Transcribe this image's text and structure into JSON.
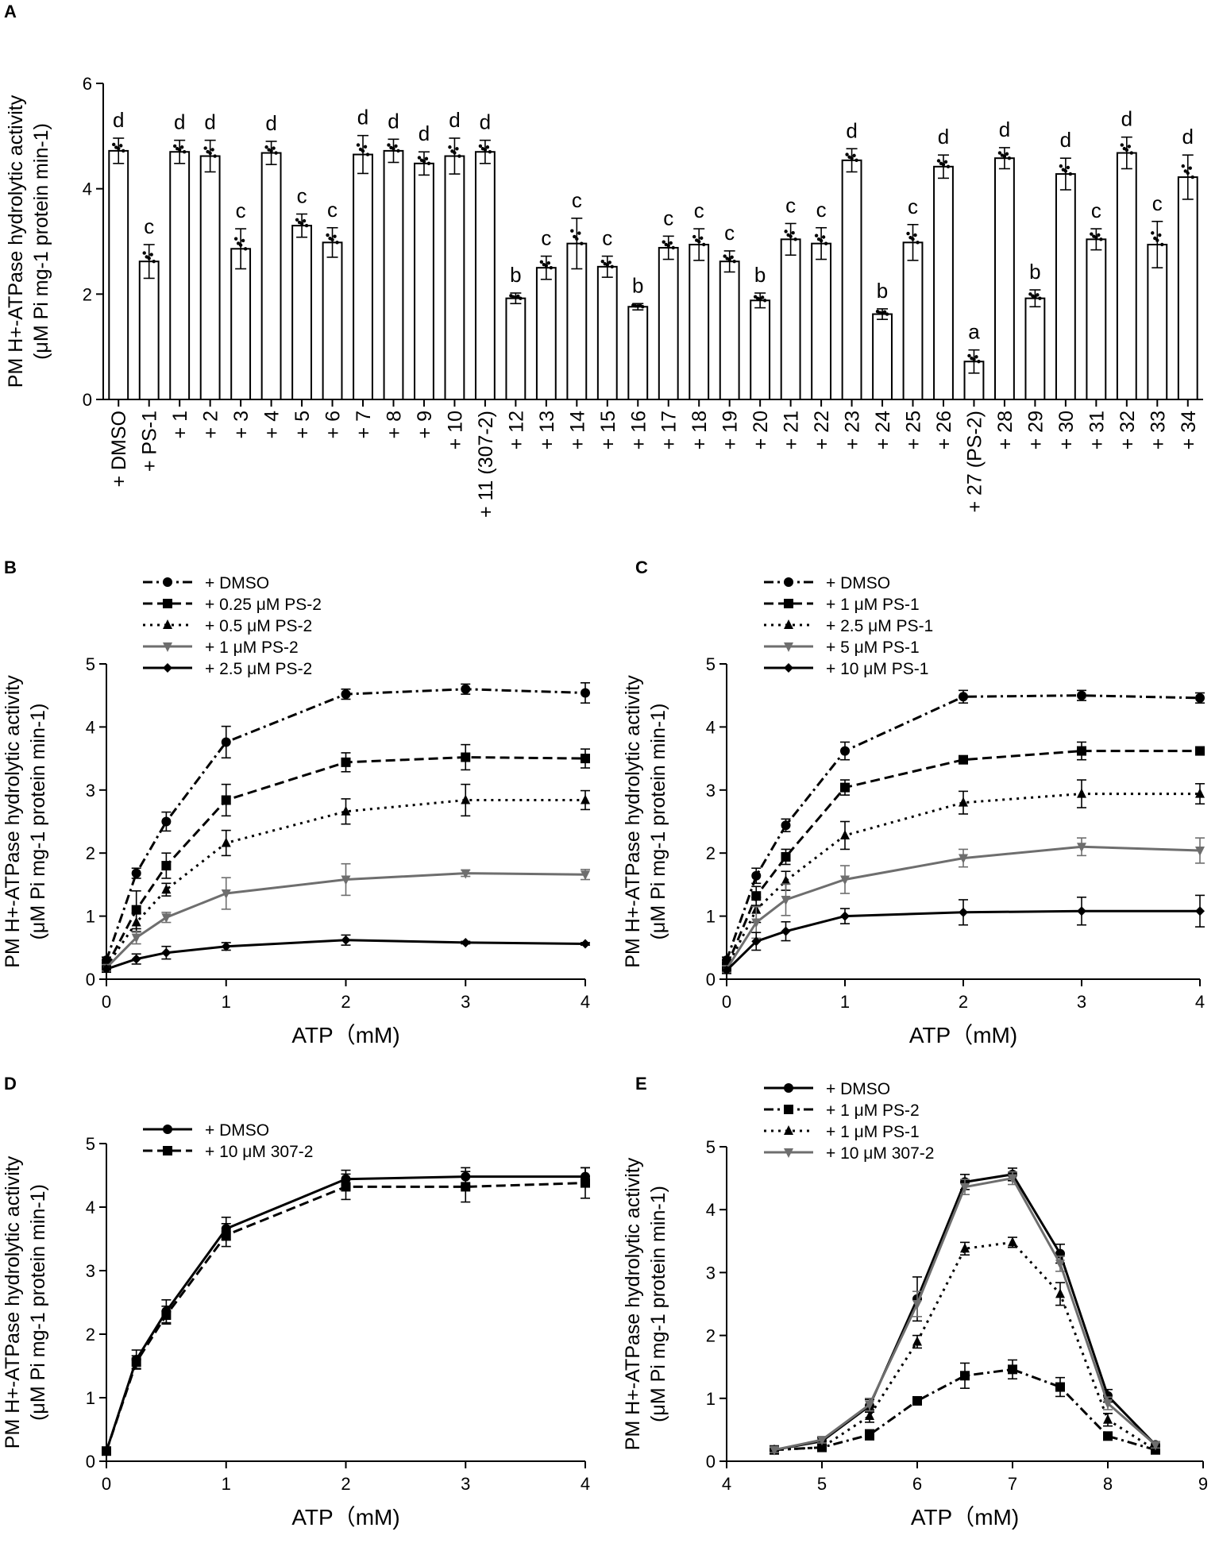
{
  "chart_data": [
    {
      "panel": "A",
      "type": "bar",
      "xlabel": "",
      "ylabel_line1": "PM H+-ATPase hydrolytic activity",
      "ylabel_line2": "(μM Pi mg-1 protein min-1)",
      "ylim": [
        0,
        6
      ],
      "yticks": [
        0,
        2,
        4,
        6
      ],
      "categories": [
        "+ DMSO",
        "+ PS-1",
        "+ 1",
        "+ 2",
        "+ 3",
        "+ 4",
        "+ 5",
        "+ 6",
        "+ 7",
        "+ 8",
        "+ 9",
        "+ 10",
        "+ 11 (307-2)",
        "+ 12",
        "+ 13",
        "+ 14",
        "+ 15",
        "+ 16",
        "+ 17",
        "+ 18",
        "+ 19",
        "+ 20",
        "+ 21",
        "+ 22",
        "+ 23",
        "+ 24",
        "+ 25",
        "+ 26",
        "+ 27 (PS-2)",
        "+ 28",
        "+ 29",
        "+ 30",
        "+ 31",
        "+ 32",
        "+ 33",
        "+ 34"
      ],
      "values": [
        4.72,
        2.62,
        4.7,
        4.62,
        2.86,
        4.68,
        3.3,
        2.98,
        4.65,
        4.72,
        4.48,
        4.62,
        4.7,
        1.92,
        2.5,
        2.96,
        2.52,
        1.76,
        2.88,
        2.94,
        2.62,
        1.88,
        3.04,
        2.96,
        4.54,
        1.62,
        2.98,
        4.42,
        0.72,
        4.58,
        1.92,
        4.28,
        3.04,
        4.68,
        2.94,
        4.22
      ],
      "errors": [
        0.24,
        0.32,
        0.22,
        0.3,
        0.38,
        0.22,
        0.22,
        0.28,
        0.36,
        0.22,
        0.22,
        0.34,
        0.22,
        0.1,
        0.22,
        0.48,
        0.2,
        0.06,
        0.22,
        0.3,
        0.2,
        0.14,
        0.3,
        0.3,
        0.22,
        0.1,
        0.34,
        0.22,
        0.22,
        0.2,
        0.16,
        0.3,
        0.2,
        0.3,
        0.44,
        0.42
      ],
      "significance": [
        "d",
        "c",
        "d",
        "d",
        "c",
        "d",
        "c",
        "c",
        "d",
        "d",
        "d",
        "d",
        "d",
        "b",
        "c",
        "c",
        "c",
        "b",
        "c",
        "c",
        "c",
        "b",
        "c",
        "c",
        "d",
        "b",
        "c",
        "d",
        "a",
        "d",
        "b",
        "d",
        "c",
        "d",
        "c",
        "d"
      ]
    },
    {
      "panel": "B",
      "type": "line",
      "xlabel": "ATP（mM)",
      "ylabel_line1": "PM H+-ATPase hydrolytic activity",
      "ylabel_line2": "(μM Pi mg-1 protein min-1)",
      "xlim": [
        0,
        4
      ],
      "ylim": [
        0,
        5
      ],
      "xticks": [
        0,
        1,
        2,
        3,
        4
      ],
      "yticks": [
        0,
        1,
        2,
        3,
        4,
        5
      ],
      "x": [
        0,
        0.25,
        0.5,
        1,
        2,
        3,
        4
      ],
      "series": [
        {
          "name": "+ DMSO",
          "values": [
            0.3,
            1.68,
            2.5,
            3.76,
            4.52,
            4.6,
            4.54
          ],
          "errors": [
            0.05,
            0.08,
            0.15,
            0.25,
            0.08,
            0.08,
            0.16
          ],
          "marker": "circle",
          "dash": "dashdot",
          "color": "#000000"
        },
        {
          "name": "+ 0.25 μM PS-2",
          "values": [
            0.2,
            1.1,
            1.8,
            2.84,
            3.44,
            3.52,
            3.5
          ],
          "errors": [
            0.05,
            0.3,
            0.2,
            0.25,
            0.15,
            0.2,
            0.15
          ],
          "marker": "square",
          "dash": "dash",
          "color": "#000000"
        },
        {
          "name": "+ 0.5 μM PS-2",
          "values": [
            0.2,
            0.9,
            1.42,
            2.16,
            2.66,
            2.84,
            2.84
          ],
          "errors": [
            0.05,
            0.15,
            0.1,
            0.2,
            0.2,
            0.25,
            0.15
          ],
          "marker": "triangle-up",
          "dash": "dot",
          "color": "#000000"
        },
        {
          "name": "+ 1 μM PS-2",
          "values": [
            0.18,
            0.66,
            0.98,
            1.36,
            1.58,
            1.68,
            1.66
          ],
          "errors": [
            0.05,
            0.1,
            0.08,
            0.25,
            0.25,
            0.05,
            0.08
          ],
          "marker": "triangle-down",
          "dash": "solid",
          "color": "#6e6e6e"
        },
        {
          "name": "+ 2.5 μM PS-2",
          "values": [
            0.16,
            0.32,
            0.42,
            0.52,
            0.62,
            0.58,
            0.56
          ],
          "errors": [
            0.05,
            0.08,
            0.1,
            0.06,
            0.08,
            0.02,
            0.02
          ],
          "marker": "diamond",
          "dash": "solid",
          "color": "#000000"
        }
      ]
    },
    {
      "panel": "C",
      "type": "line",
      "xlabel": "ATP（mM)",
      "ylabel_line1": "PM H+-ATPase hydrolytic activity",
      "ylabel_line2": "(μM Pi mg-1 protein min-1)",
      "xlim": [
        0,
        4
      ],
      "ylim": [
        0,
        5
      ],
      "xticks": [
        0,
        1,
        2,
        3,
        4
      ],
      "yticks": [
        0,
        1,
        2,
        3,
        4,
        5
      ],
      "x": [
        0,
        0.25,
        0.5,
        1,
        2,
        3,
        4
      ],
      "series": [
        {
          "name": "+ DMSO",
          "values": [
            0.3,
            1.64,
            2.44,
            3.62,
            4.48,
            4.5,
            4.46
          ],
          "errors": [
            0.05,
            0.12,
            0.1,
            0.14,
            0.1,
            0.08,
            0.08
          ],
          "marker": "circle",
          "dash": "dashdot",
          "color": "#000000"
        },
        {
          "name": "+ 1 μM PS-1",
          "values": [
            0.2,
            1.32,
            1.94,
            3.04,
            3.48,
            3.62,
            3.62
          ],
          "errors": [
            0.05,
            0.15,
            0.12,
            0.12,
            0.05,
            0.14,
            0.06
          ],
          "marker": "square",
          "dash": "dash",
          "color": "#000000"
        },
        {
          "name": "+ 2.5 μM PS-1",
          "values": [
            0.18,
            1.1,
            1.56,
            2.28,
            2.8,
            2.94,
            2.94
          ],
          "errors": [
            0.05,
            0.2,
            0.15,
            0.22,
            0.18,
            0.22,
            0.16
          ],
          "marker": "triangle-up",
          "dash": "dot",
          "color": "#000000"
        },
        {
          "name": "+ 5 μM PS-1",
          "values": [
            0.16,
            0.9,
            1.26,
            1.58,
            1.92,
            2.1,
            2.04
          ],
          "errors": [
            0.05,
            0.25,
            0.25,
            0.22,
            0.14,
            0.14,
            0.2
          ],
          "marker": "triangle-down",
          "dash": "solid",
          "color": "#6e6e6e"
        },
        {
          "name": "+ 10 μM PS-1",
          "values": [
            0.14,
            0.6,
            0.76,
            1.0,
            1.06,
            1.08,
            1.08
          ],
          "errors": [
            0.05,
            0.14,
            0.15,
            0.12,
            0.2,
            0.22,
            0.25
          ],
          "marker": "diamond",
          "dash": "solid",
          "color": "#000000"
        }
      ]
    },
    {
      "panel": "D",
      "type": "line",
      "xlabel": "ATP（mM)",
      "ylabel_line1": "PM H+-ATPase hydrolytic activity",
      "ylabel_line2": "(μM Pi mg-1 protein min-1)",
      "xlim": [
        0,
        4
      ],
      "ylim": [
        0,
        5
      ],
      "xticks": [
        0,
        1,
        2,
        3,
        4
      ],
      "yticks": [
        0,
        1,
        2,
        3,
        4,
        5
      ],
      "x": [
        0,
        0.25,
        0.5,
        1,
        2,
        3,
        4
      ],
      "series": [
        {
          "name": "+ DMSO",
          "values": [
            0.16,
            1.6,
            2.36,
            3.66,
            4.44,
            4.48,
            4.48
          ],
          "errors": [
            0.05,
            0.15,
            0.18,
            0.18,
            0.14,
            0.14,
            0.14
          ],
          "marker": "circle",
          "dash": "solid",
          "color": "#000000"
        },
        {
          "name": "+ 10 μM 307-2",
          "values": [
            0.16,
            1.56,
            2.3,
            3.56,
            4.32,
            4.32,
            4.38
          ],
          "errors": [
            0.05,
            0.1,
            0.14,
            0.18,
            0.2,
            0.24,
            0.24
          ],
          "marker": "square",
          "dash": "dash",
          "color": "#000000"
        }
      ]
    },
    {
      "panel": "E",
      "type": "line",
      "xlabel": "ATP（mM)",
      "ylabel_line1": "PM H+-ATPase hydrolytic activity",
      "ylabel_line2": "(μM Pi mg-1 protein min-1)",
      "xlim": [
        4,
        9
      ],
      "ylim": [
        0,
        5
      ],
      "xticks": [
        4,
        5,
        6,
        7,
        8,
        9
      ],
      "yticks": [
        0,
        1,
        2,
        3,
        4,
        5
      ],
      "x": [
        4.5,
        5,
        5.5,
        6,
        6.5,
        7,
        7.5,
        8,
        8.5
      ],
      "series": [
        {
          "name": "+ DMSO",
          "values": [
            0.18,
            0.32,
            0.88,
            2.58,
            4.44,
            4.56,
            3.3,
            1.04,
            0.26
          ],
          "errors": [
            0.04,
            0.05,
            0.1,
            0.35,
            0.12,
            0.1,
            0.15,
            0.1,
            0.05
          ],
          "marker": "circle",
          "dash": "solid",
          "color": "#000000"
        },
        {
          "name": "+ 1 μM PS-2",
          "values": [
            0.18,
            0.22,
            0.42,
            0.96,
            1.36,
            1.46,
            1.18,
            0.4,
            0.18
          ],
          "errors": [
            0.04,
            0.05,
            0.08,
            0.05,
            0.2,
            0.15,
            0.15,
            0.05,
            0.04
          ],
          "marker": "square",
          "dash": "dashdot",
          "color": "#000000"
        },
        {
          "name": "+ 1 μM PS-1",
          "values": [
            0.18,
            0.22,
            0.72,
            1.9,
            3.38,
            3.48,
            2.66,
            0.66,
            0.18
          ],
          "errors": [
            0.04,
            0.05,
            0.1,
            0.1,
            0.1,
            0.08,
            0.18,
            0.1,
            0.04
          ],
          "marker": "triangle-up",
          "dash": "dot",
          "color": "#000000"
        },
        {
          "name": "+ 10 μM 307-2",
          "values": [
            0.18,
            0.34,
            0.9,
            2.5,
            4.36,
            4.5,
            3.14,
            0.92,
            0.26
          ],
          "errors": [
            0.04,
            0.05,
            0.1,
            0.2,
            0.12,
            0.1,
            0.12,
            0.1,
            0.05
          ],
          "marker": "triangle-down",
          "dash": "solid",
          "color": "#6e6e6e"
        }
      ]
    }
  ]
}
